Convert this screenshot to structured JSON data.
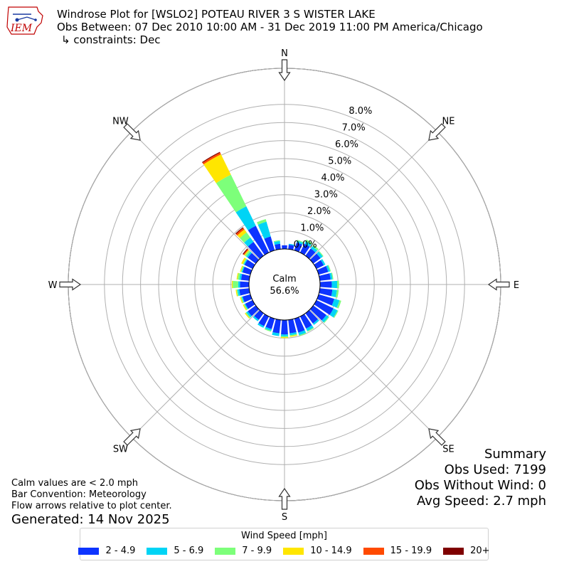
{
  "header": {
    "line1": "Windrose Plot for [WSLO2] POTEAU RIVER 3 S WISTER LAKE",
    "line2": "Obs Between: 07 Dec 2010 10:00 AM - 31 Dec 2019 11:00 PM America/Chicago",
    "line3": "↳ constraints: Dec",
    "logo_text": "IEM"
  },
  "notes": {
    "calm_def": "Calm values are < 2.0 mph",
    "convention": "Bar Convention: Meteorology",
    "flow": "Flow arrows relative to plot center.",
    "generated": "Generated: 14 Nov 2025"
  },
  "summary": {
    "title": "Summary",
    "obs_used": "Obs Used: 7199",
    "obs_without_wind": "Obs Without Wind: 0",
    "avg_speed": "Avg Speed: 2.7 mph"
  },
  "legend": {
    "title": "Wind Speed [mph]",
    "items": [
      {
        "label": "2 - 4.9",
        "color": "#0d34ff"
      },
      {
        "label": "5 - 6.9",
        "color": "#00d4f5"
      },
      {
        "label": "7 - 9.9",
        "color": "#7dff7a"
      },
      {
        "label": "10 - 14.9",
        "color": "#ffe600"
      },
      {
        "label": "15 - 19.9",
        "color": "#ff4a00"
      },
      {
        "label": "20+",
        "color": "#7f0000"
      }
    ]
  },
  "chart_data": {
    "type": "windrose",
    "calm_label": "Calm",
    "calm_value": "56.6%",
    "radial_ticks": [
      "0.0%",
      "1.0%",
      "2.0%",
      "3.0%",
      "4.0%",
      "5.0%",
      "6.0%",
      "7.0%",
      "8.0%"
    ],
    "radial_values": [
      0,
      1,
      2,
      3,
      4,
      5,
      6,
      7,
      8
    ],
    "rmax": 10,
    "direction_labels": [
      "N",
      "NE",
      "E",
      "SE",
      "S",
      "SW",
      "W",
      "NW"
    ],
    "direction_angles": [
      0,
      45,
      90,
      135,
      180,
      225,
      270,
      315
    ],
    "bin_width_deg": 10,
    "directions_deg": [
      0,
      10,
      20,
      30,
      40,
      50,
      60,
      70,
      80,
      90,
      100,
      110,
      120,
      130,
      140,
      150,
      160,
      170,
      180,
      190,
      200,
      210,
      220,
      230,
      240,
      250,
      260,
      270,
      280,
      290,
      300,
      310,
      320,
      330,
      340,
      350
    ],
    "series": [
      {
        "name": "2 - 4.9",
        "color": "#0d34ff",
        "values": [
          0.2,
          0.25,
          0.45,
          0.55,
          0.5,
          0.5,
          0.45,
          0.55,
          0.6,
          0.65,
          0.7,
          0.9,
          1.05,
          0.9,
          0.7,
          0.75,
          0.8,
          0.75,
          0.8,
          0.75,
          0.6,
          0.6,
          0.45,
          0.55,
          0.45,
          0.45,
          0.55,
          0.5,
          0.45,
          0.45,
          0.5,
          0.55,
          0.95,
          1.65,
          0.8,
          0.3
        ]
      },
      {
        "name": "5 - 6.9",
        "color": "#00d4f5",
        "values": [
          0.0,
          0.05,
          0.1,
          0.15,
          0.15,
          0.15,
          0.1,
          0.1,
          0.1,
          0.3,
          0.25,
          0.3,
          0.25,
          0.15,
          0.1,
          0.15,
          0.15,
          0.1,
          0.1,
          0.15,
          0.1,
          0.1,
          0.1,
          0.1,
          0.05,
          0.05,
          0.1,
          0.1,
          0.1,
          0.05,
          0.05,
          0.1,
          0.3,
          1.2,
          0.85,
          0.15
        ]
      },
      {
        "name": "7 - 9.9",
        "color": "#7dff7a",
        "values": [
          0.0,
          0.0,
          0.05,
          0.1,
          0.1,
          0.05,
          0.0,
          0.05,
          0.05,
          0.1,
          0.1,
          0.1,
          0.05,
          0.05,
          0.0,
          0.05,
          0.05,
          0.05,
          0.05,
          0.0,
          0.05,
          0.0,
          0.0,
          0.05,
          0.05,
          0.05,
          0.05,
          0.3,
          0.1,
          0.05,
          0.05,
          0.1,
          0.35,
          1.95,
          0.15,
          0.05
        ]
      },
      {
        "name": "10 - 14.9",
        "color": "#ffe600",
        "values": [
          0.0,
          0.0,
          0.0,
          0.0,
          0.0,
          0.0,
          0.0,
          0.0,
          0.0,
          0.0,
          0.0,
          0.0,
          0.0,
          0.0,
          0.0,
          0.0,
          0.0,
          0.05,
          0.05,
          0.0,
          0.0,
          0.0,
          0.0,
          0.05,
          0.05,
          0.05,
          0.05,
          0.05,
          0.05,
          0.05,
          0.1,
          0.05,
          0.2,
          1.25,
          0.0,
          0.0
        ]
      },
      {
        "name": "15 - 19.9",
        "color": "#ff4a00",
        "values": [
          0.0,
          0.0,
          0.0,
          0.0,
          0.0,
          0.0,
          0.0,
          0.0,
          0.0,
          0.0,
          0.0,
          0.0,
          0.0,
          0.0,
          0.0,
          0.0,
          0.0,
          0.0,
          0.0,
          0.0,
          0.0,
          0.0,
          0.0,
          0.0,
          0.0,
          0.0,
          0.0,
          0.0,
          0.0,
          0.0,
          0.0,
          0.05,
          0.1,
          0.1,
          0.0,
          0.0
        ]
      },
      {
        "name": "20+",
        "color": "#7f0000",
        "values": [
          0.0,
          0.0,
          0.0,
          0.0,
          0.0,
          0.0,
          0.0,
          0.0,
          0.0,
          0.0,
          0.0,
          0.0,
          0.0,
          0.0,
          0.0,
          0.0,
          0.0,
          0.0,
          0.0,
          0.0,
          0.0,
          0.0,
          0.0,
          0.0,
          0.0,
          0.0,
          0.0,
          0.0,
          0.0,
          0.0,
          0.0,
          0.05,
          0.05,
          0.05,
          0.0,
          0.0
        ]
      }
    ]
  }
}
